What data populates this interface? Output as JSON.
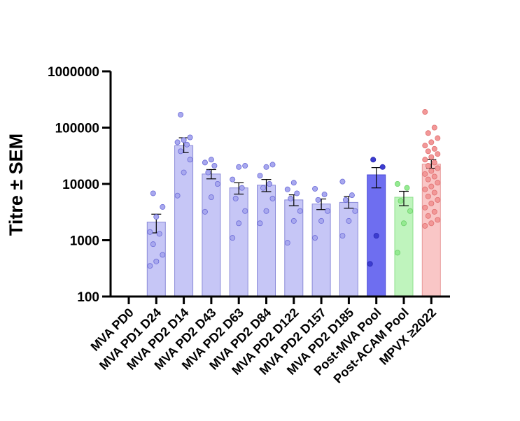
{
  "chart_data": {
    "type": "bar",
    "ylabel": "Titre ± SEM",
    "yscale": "log",
    "ylim": [
      100,
      1000000
    ],
    "yticks": [
      {
        "value": 100,
        "label": "100"
      },
      {
        "value": 1000,
        "label": "1000"
      },
      {
        "value": 10000,
        "label": "10000"
      },
      {
        "value": 100000,
        "label": "100000"
      },
      {
        "value": 1000000,
        "label": "1000000"
      }
    ],
    "categories": [
      "MVA PD0",
      "MVA PD1 D24",
      "MVA PD2 D14",
      "MVA PD2 D43",
      "MVA PD2 D63",
      "MVA PD2 D84",
      "MVA PD2 D122",
      "MVA PD2 D157",
      "MVA PD2 D185",
      "Post-MVA Pool",
      "Post-ACAM Pool",
      "MPVX ≥2022"
    ],
    "values": [
      null,
      2100,
      48000,
      15000,
      8500,
      9500,
      5200,
      4400,
      4700,
      14500,
      5800,
      22500
    ],
    "error_low": [
      null,
      1350,
      36000,
      12300,
      6600,
      7300,
      4100,
      3500,
      3700,
      8500,
      4100,
      19000
    ],
    "error_high": [
      null,
      2900,
      66000,
      18000,
      10500,
      12000,
      6400,
      5400,
      6000,
      19500,
      7400,
      27000
    ],
    "points": [
      [],
      [
        350,
        420,
        550,
        850,
        1300,
        1400,
        2600,
        3900,
        6800
      ],
      [
        6200,
        16000,
        27000,
        38000,
        50000,
        55000,
        60000,
        67000,
        170000
      ],
      [
        3200,
        5800,
        10000,
        16000,
        21000,
        24000,
        27000
      ],
      [
        1100,
        2000,
        3300,
        5500,
        8500,
        12000,
        20000,
        21000
      ],
      [
        2000,
        3300,
        5500,
        8500,
        10000,
        14000,
        20000,
        22000
      ],
      [
        900,
        2200,
        3300,
        5500,
        6800,
        8000,
        10500
      ],
      [
        1100,
        2200,
        3300,
        5200,
        6500,
        8200
      ],
      [
        1200,
        2200,
        3300,
        5200,
        6300,
        11000
      ],
      [
        380,
        1200,
        20000,
        27000
      ],
      [
        600,
        2000,
        3300,
        5000,
        8500,
        10000
      ],
      [
        1800,
        2000,
        2300,
        2700,
        3200,
        3800,
        4500,
        5200,
        6000,
        7000,
        8000,
        9000,
        10500,
        12000,
        13500,
        15000,
        17000,
        19000,
        21000,
        24000,
        27000,
        30000,
        34000,
        38000,
        42000,
        48000,
        55000,
        65000,
        80000,
        100000,
        190000
      ]
    ],
    "colors": {
      "bar_fill": [
        "#c6c6f6",
        "#c6c6f6",
        "#c6c6f6",
        "#c6c6f6",
        "#c6c6f6",
        "#c6c6f6",
        "#c6c6f6",
        "#c6c6f6",
        "#c6c6f6",
        "#6e6ef0",
        "#bff4bd",
        "#f9c6c6"
      ],
      "bar_stroke": [
        "#8a8ad8",
        "#8a8ad8",
        "#8a8ad8",
        "#8a8ad8",
        "#8a8ad8",
        "#8a8ad8",
        "#8a8ad8",
        "#8a8ad8",
        "#8a8ad8",
        "#4a4ad6",
        "#8fe08c",
        "#e89a9a"
      ],
      "point_fill": [
        "#a8a8ee",
        "#a8a8ee",
        "#a8a8ee",
        "#a8a8ee",
        "#a8a8ee",
        "#a8a8ee",
        "#a8a8ee",
        "#a8a8ee",
        "#a8a8ee",
        "#3c3cd0",
        "#95ea92",
        "#f29898"
      ],
      "point_stroke": [
        "#6c6cd8",
        "#6c6cd8",
        "#6c6cd8",
        "#6c6cd8",
        "#6c6cd8",
        "#6c6cd8",
        "#6c6cd8",
        "#6c6cd8",
        "#6c6cd8",
        "#2a2ab0",
        "#6cd068",
        "#e07070"
      ]
    },
    "grid": false,
    "legend": "none"
  }
}
